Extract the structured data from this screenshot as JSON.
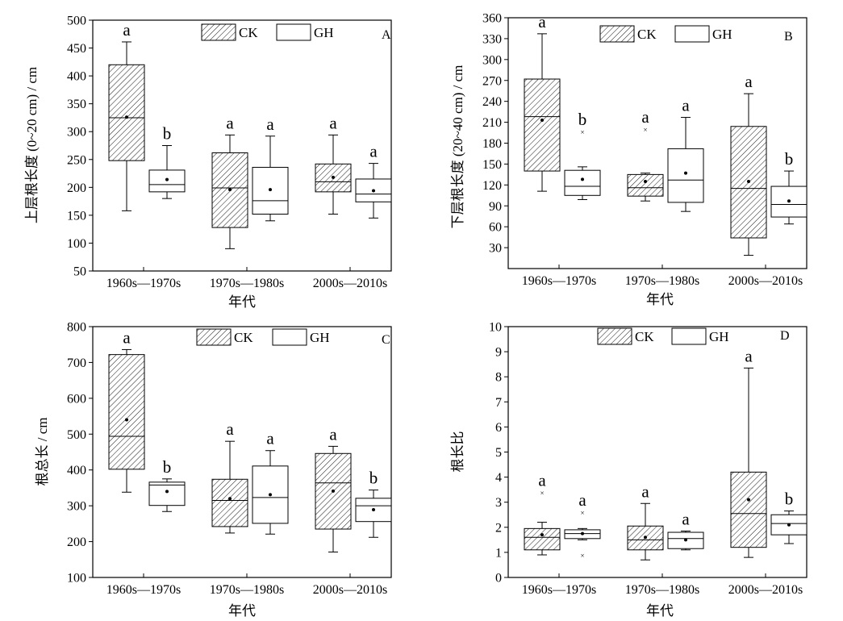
{
  "chart_data": [
    {
      "id": "A",
      "type": "box",
      "panel_label": "A",
      "ylabel": "上层根长度 (0~20 cm) / cm",
      "xlabel": "年代",
      "ylim": [
        50,
        500
      ],
      "yticks": [
        50,
        100,
        150,
        200,
        250,
        300,
        350,
        400,
        450,
        500
      ],
      "categories": [
        "1960s—1970s",
        "1970s—1980s",
        "2000s—2010s"
      ],
      "legend": [
        "CK",
        "GH"
      ],
      "boxes": [
        {
          "group": 0,
          "series": "CK",
          "min": 158,
          "q1": 248,
          "median": 325,
          "q3": 420,
          "max": 461,
          "mean": 326,
          "outliers": [],
          "letter": "a"
        },
        {
          "group": 0,
          "series": "GH",
          "min": 180,
          "q1": 192,
          "median": 205,
          "q3": 231,
          "max": 275,
          "mean": 214,
          "outliers": [],
          "letter": "b"
        },
        {
          "group": 1,
          "series": "CK",
          "min": 90,
          "q1": 128,
          "median": 199,
          "q3": 262,
          "max": 294,
          "mean": 196,
          "outliers": [],
          "letter": "a"
        },
        {
          "group": 1,
          "series": "GH",
          "min": 140,
          "q1": 152,
          "median": 176,
          "q3": 236,
          "max": 292,
          "mean": 196,
          "outliers": [],
          "letter": "a"
        },
        {
          "group": 2,
          "series": "CK",
          "min": 152,
          "q1": 192,
          "median": 210,
          "q3": 242,
          "max": 294,
          "mean": 218,
          "outliers": [],
          "letter": "a"
        },
        {
          "group": 2,
          "series": "GH",
          "min": 145,
          "q1": 174,
          "median": 188,
          "q3": 215,
          "max": 243,
          "mean": 194,
          "outliers": [],
          "letter": "a"
        }
      ]
    },
    {
      "id": "B",
      "type": "box",
      "panel_label": "B",
      "ylabel": "下层根长度 (20~40 cm) / cm",
      "xlabel": "年代",
      "ylim": [
        0,
        360
      ],
      "yticks": [
        30,
        60,
        90,
        120,
        150,
        180,
        210,
        240,
        270,
        300,
        330,
        360
      ],
      "categories": [
        "1960s—1970s",
        "1970s—1980s",
        "2000s—2010s"
      ],
      "legend": [
        "CK",
        "GH"
      ],
      "boxes": [
        {
          "group": 0,
          "series": "CK",
          "min": 111,
          "q1": 140,
          "median": 218,
          "q3": 272,
          "max": 337,
          "mean": 213,
          "outliers": [],
          "letter": "a"
        },
        {
          "group": 0,
          "series": "GH",
          "min": 99,
          "q1": 105,
          "median": 118,
          "q3": 141,
          "max": 146,
          "mean": 128,
          "outliers": [
            197
          ],
          "letter": "b"
        },
        {
          "group": 1,
          "series": "CK",
          "min": 97,
          "q1": 104,
          "median": 116,
          "q3": 135,
          "max": 137,
          "mean": 125,
          "outliers": [
            200
          ],
          "letter": "a"
        },
        {
          "group": 1,
          "series": "GH",
          "min": 82,
          "q1": 95,
          "median": 127,
          "q3": 172,
          "max": 217,
          "mean": 137,
          "outliers": [],
          "letter": "a"
        },
        {
          "group": 2,
          "series": "CK",
          "min": 19,
          "q1": 44,
          "median": 115,
          "q3": 204,
          "max": 251,
          "mean": 125,
          "outliers": [],
          "letter": "a"
        },
        {
          "group": 2,
          "series": "GH",
          "min": 64,
          "q1": 74,
          "median": 92,
          "q3": 118,
          "max": 140,
          "mean": 97,
          "outliers": [],
          "letter": "b"
        }
      ]
    },
    {
      "id": "C",
      "type": "box",
      "panel_label": "C",
      "ylabel": "根总长 / cm",
      "xlabel": "年代",
      "ylim": [
        100,
        800
      ],
      "yticks": [
        100,
        200,
        300,
        400,
        500,
        600,
        700,
        800
      ],
      "categories": [
        "1960s—1970s",
        "1970s—1980s",
        "2000s—2010s"
      ],
      "legend": [
        "CK",
        "GH"
      ],
      "boxes": [
        {
          "group": 0,
          "series": "CK",
          "min": 338,
          "q1": 402,
          "median": 494,
          "q3": 722,
          "max": 736,
          "mean": 540,
          "outliers": [],
          "letter": "a"
        },
        {
          "group": 0,
          "series": "GH",
          "min": 284,
          "q1": 301,
          "median": 358,
          "q3": 366,
          "max": 375,
          "mean": 340,
          "outliers": [],
          "letter": "b"
        },
        {
          "group": 1,
          "series": "CK",
          "min": 224,
          "q1": 242,
          "median": 315,
          "q3": 374,
          "max": 480,
          "mean": 320,
          "outliers": [],
          "letter": "a"
        },
        {
          "group": 1,
          "series": "GH",
          "min": 221,
          "q1": 251,
          "median": 323,
          "q3": 411,
          "max": 454,
          "mean": 331,
          "outliers": [],
          "letter": "a"
        },
        {
          "group": 2,
          "series": "CK",
          "min": 171,
          "q1": 235,
          "median": 364,
          "q3": 446,
          "max": 466,
          "mean": 341,
          "outliers": [],
          "letter": "a"
        },
        {
          "group": 2,
          "series": "GH",
          "min": 212,
          "q1": 256,
          "median": 300,
          "q3": 321,
          "max": 344,
          "mean": 289,
          "outliers": [],
          "letter": "b"
        }
      ]
    },
    {
      "id": "D",
      "type": "box",
      "panel_label": "D",
      "ylabel": "根长比",
      "xlabel": "年代",
      "ylim": [
        0,
        10
      ],
      "yticks": [
        0,
        1,
        2,
        3,
        4,
        5,
        6,
        7,
        8,
        9,
        10
      ],
      "categories": [
        "1960s—1970s",
        "1970s—1980s",
        "2000s—2010s"
      ],
      "legend": [
        "CK",
        "GH"
      ],
      "boxes": [
        {
          "group": 0,
          "series": "CK",
          "min": 0.9,
          "q1": 1.1,
          "median": 1.6,
          "q3": 1.95,
          "max": 2.2,
          "mean": 1.7,
          "outliers": [
            3.4
          ],
          "letter": "a"
        },
        {
          "group": 0,
          "series": "GH",
          "min": 1.5,
          "q1": 1.55,
          "median": 1.75,
          "q3": 1.9,
          "max": 1.95,
          "mean": 1.75,
          "outliers": [
            2.6,
            0.9
          ],
          "letter": "a"
        },
        {
          "group": 1,
          "series": "CK",
          "min": 0.7,
          "q1": 1.1,
          "median": 1.5,
          "q3": 2.05,
          "max": 2.95,
          "mean": 1.6,
          "outliers": [],
          "letter": "a"
        },
        {
          "group": 1,
          "series": "GH",
          "min": 1.1,
          "q1": 1.15,
          "median": 1.55,
          "q3": 1.8,
          "max": 1.85,
          "mean": 1.5,
          "outliers": [],
          "letter": "a"
        },
        {
          "group": 2,
          "series": "CK",
          "min": 0.8,
          "q1": 1.2,
          "median": 2.55,
          "q3": 4.2,
          "max": 8.35,
          "mean": 3.1,
          "outliers": [],
          "letter": "a"
        },
        {
          "group": 2,
          "series": "GH",
          "min": 1.35,
          "q1": 1.7,
          "median": 2.15,
          "q3": 2.5,
          "max": 2.65,
          "mean": 2.1,
          "outliers": [],
          "letter": "b"
        }
      ]
    }
  ]
}
